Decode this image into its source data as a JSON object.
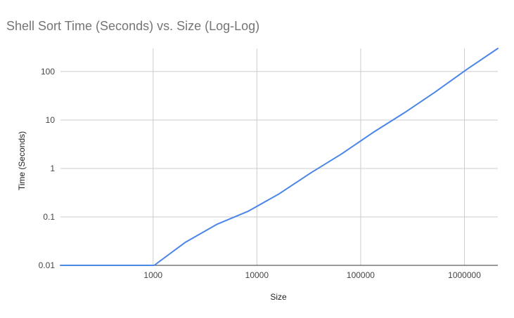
{
  "chart_data": {
    "type": "line",
    "title": "Shell Sort Time (Seconds) vs. Size (Log-Log)",
    "xlabel": "Size",
    "ylabel": "Time (Seconds)",
    "x_scale": "log",
    "y_scale": "log",
    "xlim": [
      128,
      2097152
    ],
    "ylim": [
      0.01,
      300
    ],
    "x_ticks": [
      1000,
      10000,
      100000,
      1000000
    ],
    "x_tick_labels": [
      "1000",
      "10000",
      "100000",
      "1000000"
    ],
    "y_ticks": [
      0.01,
      0.1,
      1,
      10,
      100
    ],
    "y_tick_labels": [
      "0.01",
      "0.1",
      "1",
      "10",
      "100"
    ],
    "grid": true,
    "legend": "none",
    "series": [
      {
        "color": "#4a86e8",
        "x": [
          128,
          256,
          512,
          1024,
          2048,
          4096,
          8192,
          16384,
          32768,
          65536,
          131072,
          262144,
          524288,
          1048576,
          2097152
        ],
        "y": [
          0.01,
          0.01,
          0.01,
          0.01,
          0.03,
          0.07,
          0.13,
          0.3,
          0.8,
          2,
          5.5,
          14,
          38,
          110,
          300
        ]
      }
    ]
  }
}
